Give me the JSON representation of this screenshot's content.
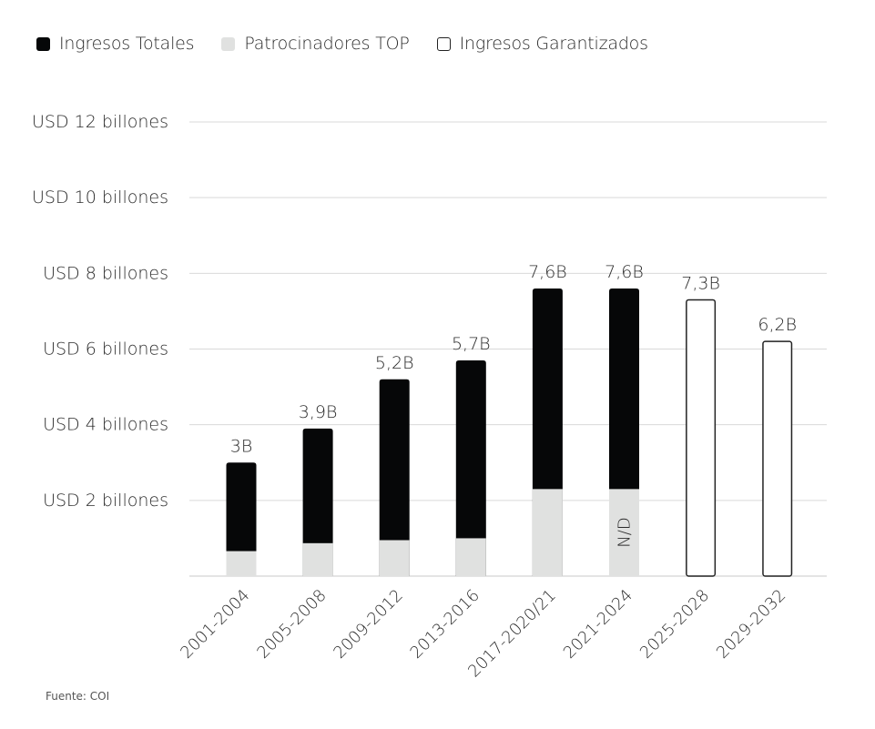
{
  "legend": [
    {
      "label": "Ingresos Totales",
      "color": "#060708",
      "style": "filled"
    },
    {
      "label": "Patrocinadores TOP",
      "color": "#e0e1e0",
      "style": "filled"
    },
    {
      "label": "Ingresos Garantizados",
      "color": "#ffffff",
      "style": "outline"
    }
  ],
  "source": "Fuente: COI",
  "chart_data": {
    "type": "bar",
    "stacked": true,
    "title": "",
    "xlabel": "",
    "ylabel": "",
    "ylim": [
      0,
      12
    ],
    "yticks": [
      {
        "value": 2,
        "label": "USD 2 billones"
      },
      {
        "value": 4,
        "label": "USD 4 billones"
      },
      {
        "value": 6,
        "label": "USD 6 billones"
      },
      {
        "value": 8,
        "label": "USD 8 billones"
      },
      {
        "value": 10,
        "label": "USD 10 billones"
      },
      {
        "value": 12,
        "label": "USD 12 billones"
      }
    ],
    "grid": true,
    "legend_position": "top-left",
    "categories": [
      "2001-2004",
      "2005-2008",
      "2009-2012",
      "2013-2016",
      "2017-2020/21",
      "2021-2024",
      "2025-2028",
      "2029-2032"
    ],
    "series": [
      {
        "name": "Patrocinadores TOP",
        "color": "#e0e1e0",
        "values": [
          0.66,
          0.87,
          0.95,
          1.0,
          2.3,
          2.3,
          null,
          null
        ]
      },
      {
        "name": "Ingresos Totales",
        "color": "#060708",
        "values": [
          3.0,
          3.9,
          5.2,
          5.7,
          7.6,
          7.6,
          null,
          null
        ]
      },
      {
        "name": "Ingresos Garantizados",
        "color": "#ffffff",
        "values": [
          null,
          null,
          null,
          null,
          null,
          null,
          7.3,
          6.2
        ]
      }
    ],
    "data_labels": [
      "3B",
      "3,9B",
      "5,2B",
      "5,7B",
      "7,6B",
      "7,6B",
      "7,3B",
      "6,2B"
    ],
    "annotations": [
      {
        "category": "2021-2024",
        "text": "N/D"
      }
    ]
  }
}
